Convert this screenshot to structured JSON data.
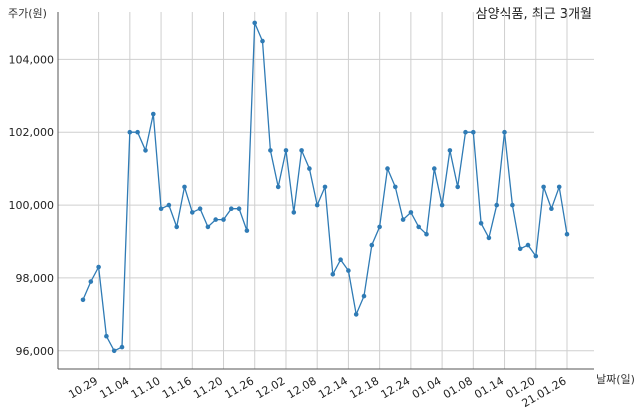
{
  "chart_data": {
    "type": "line",
    "title": "삼양식품, 최근 3개월",
    "ylabel": "주가(원)",
    "xlabel": "날짜(일)",
    "ylim": [
      95500,
      105300
    ],
    "yticks": [
      96000,
      98000,
      100000,
      102000,
      104000
    ],
    "ytick_labels": [
      "96,000",
      "98,000",
      "100,000",
      "102,000",
      "104,000"
    ],
    "xtick_labels": [
      "10.29",
      "11.04",
      "11.10",
      "11.16",
      "11.20",
      "11.26",
      "12.02",
      "12.08",
      "12.14",
      "12.18",
      "12.24",
      "01.04",
      "01.08",
      "01.14",
      "01.20",
      "21.01.26"
    ],
    "xtick_index": [
      2,
      6,
      10,
      14,
      18,
      22,
      26,
      30,
      34,
      38,
      42,
      46,
      50,
      54,
      58,
      62
    ],
    "grid": true,
    "color": "#2f7bb5",
    "series": [
      {
        "values": [
          97400,
          97900,
          98300,
          96400,
          96000,
          96100,
          102000,
          102000,
          101500,
          102500,
          99900,
          100000,
          99400,
          100500,
          99800,
          99900,
          99400,
          99600,
          99600,
          99900,
          99900,
          99300,
          105000,
          104500,
          101500,
          100500,
          101500,
          99800,
          101500,
          101000,
          100000,
          100500,
          98100,
          98500,
          98200,
          97000,
          97500,
          98900,
          99400,
          101000,
          100500,
          99600,
          99800,
          99400,
          99200,
          101000,
          100000,
          101500,
          100500,
          102000,
          102000,
          99500,
          99100,
          100000,
          102000,
          100000,
          98800,
          98900,
          98600,
          100500,
          99900,
          100500,
          99200
        ]
      }
    ]
  }
}
